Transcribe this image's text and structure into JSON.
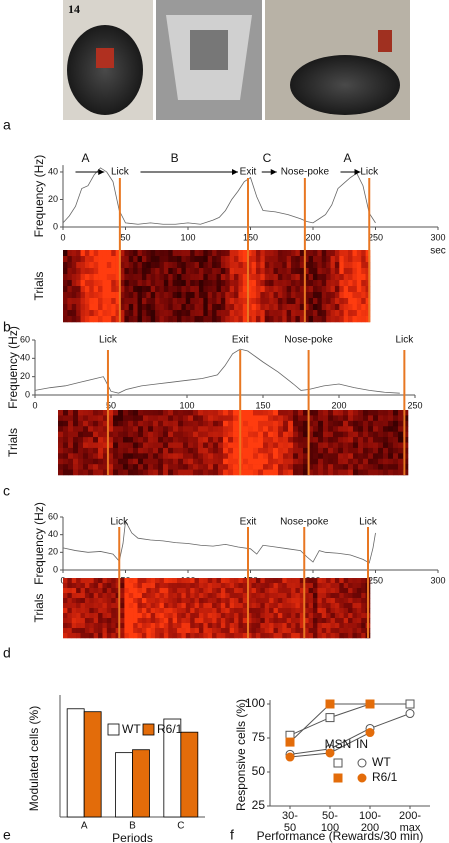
{
  "figure": {
    "photo_label": "14",
    "panel_labels": [
      "a",
      "b",
      "c",
      "d",
      "e",
      "f"
    ]
  },
  "chart_data": [
    {
      "type": "line",
      "x": [
        0,
        5,
        10,
        15,
        20,
        25,
        30,
        35,
        40,
        45,
        50,
        60,
        70,
        80,
        90,
        100,
        110,
        120,
        125,
        130,
        135,
        140,
        145,
        150,
        155,
        160,
        170,
        180,
        190,
        195,
        200,
        205,
        210,
        215,
        220,
        225,
        230,
        235,
        240,
        245,
        250
      ],
      "values": [
        3,
        8,
        15,
        28,
        30,
        38,
        43,
        40,
        33,
        12,
        3,
        2,
        3,
        2,
        2,
        3,
        2,
        5,
        7,
        12,
        20,
        26,
        33,
        36,
        22,
        12,
        11,
        9,
        6,
        4,
        3,
        6,
        9,
        16,
        28,
        32,
        36,
        39,
        30,
        10,
        3
      ],
      "color": "#666666",
      "xlim": [
        0,
        300
      ],
      "xticks": [
        0,
        50,
        100,
        150,
        200,
        250,
        300
      ],
      "ylim": [
        0,
        45
      ],
      "yticks": [
        0,
        20,
        40
      ],
      "y_label": "Frequency (Hz)",
      "x_label": "sec",
      "heatmap_label": "Trials",
      "event_color": "#e87722",
      "events": [
        {
          "x": 45.5,
          "label": "Lick"
        },
        {
          "x": 148,
          "label": "Exit"
        },
        {
          "x": 193.5,
          "label": "Nose-poke"
        },
        {
          "x": 245,
          "label": "Lick"
        }
      ],
      "periods": [
        {
          "label": "A",
          "from": 10,
          "to": 33
        },
        {
          "label": "B",
          "from": 62,
          "to": 140
        },
        {
          "label": "C",
          "from": 159,
          "to": 171
        },
        {
          "label": "A",
          "from": 222,
          "to": 238
        }
      ]
    },
    {
      "type": "line",
      "x": [
        0,
        10,
        20,
        30,
        40,
        45,
        50,
        55,
        60,
        70,
        80,
        90,
        100,
        110,
        120,
        125,
        130,
        135,
        140,
        145,
        150,
        160,
        170,
        175,
        180,
        190,
        200,
        210,
        220,
        230,
        240
      ],
      "values": [
        5,
        8,
        10,
        14,
        18,
        20,
        4,
        2,
        6,
        10,
        12,
        14,
        16,
        18,
        22,
        32,
        45,
        50,
        48,
        42,
        36,
        25,
        12,
        5,
        6,
        10,
        12,
        8,
        5,
        3,
        2
      ],
      "color": "#666666",
      "xlim": [
        0,
        250
      ],
      "xticks": [
        0,
        50,
        100,
        150,
        200,
        250
      ],
      "ylim": [
        0,
        60
      ],
      "yticks": [
        0,
        20,
        40,
        60
      ],
      "y_label": "Frequency (Hz)",
      "heatmap_label": "Trials",
      "event_color": "#e87722",
      "events": [
        {
          "x": 48,
          "label": "Lick"
        },
        {
          "x": 135,
          "label": "Exit"
        },
        {
          "x": 180,
          "label": "Nose-poke"
        },
        {
          "x": 243,
          "label": "Lick"
        }
      ]
    },
    {
      "type": "line",
      "x": [
        0,
        10,
        20,
        30,
        40,
        45,
        48,
        50,
        52,
        55,
        60,
        70,
        80,
        90,
        100,
        110,
        120,
        130,
        140,
        150,
        155,
        160,
        170,
        180,
        190,
        195,
        200,
        205,
        210,
        220,
        230,
        240,
        245,
        248,
        250
      ],
      "values": [
        25,
        22,
        20,
        21,
        18,
        10,
        30,
        55,
        50,
        42,
        36,
        34,
        33,
        31,
        30,
        28,
        27,
        29,
        26,
        24,
        18,
        28,
        26,
        24,
        22,
        15,
        9,
        22,
        20,
        19,
        17,
        12,
        8,
        25,
        42
      ],
      "color": "#666666",
      "xlim": [
        0,
        300
      ],
      "xticks": [
        0,
        50,
        100,
        150,
        200,
        250,
        300
      ],
      "ylim": [
        0,
        60
      ],
      "yticks": [
        0,
        20,
        40,
        60
      ],
      "y_label": "Frequency (Hz)",
      "heatmap_label": "Trials",
      "event_color": "#e87722",
      "events": [
        {
          "x": 45,
          "label": "Lick"
        },
        {
          "x": 148,
          "label": "Exit"
        },
        {
          "x": 193,
          "label": "Nose-poke"
        },
        {
          "x": 244,
          "label": "Lick"
        }
      ]
    },
    {
      "type": "bar",
      "categories": [
        "A",
        "B",
        "C"
      ],
      "series": [
        {
          "name": "WT",
          "color": "#ffffff",
          "values": [
            37,
            22,
            33.5
          ]
        },
        {
          "name": "R6/1",
          "color": "#e36c0a",
          "values": [
            36,
            23,
            29
          ]
        }
      ],
      "ylim": [
        0,
        40
      ],
      "y_label": "Modulated cells (%)",
      "x_label": "Periods"
    },
    {
      "type": "line",
      "categories": [
        "30-50",
        "50-100",
        "100-200",
        "200-max"
      ],
      "series": [
        {
          "marker": "square",
          "color": "#ffffff",
          "values": [
            77,
            90,
            100,
            100
          ]
        },
        {
          "marker": "circle",
          "color": "#ffffff",
          "values": [
            63,
            67,
            82,
            93
          ]
        },
        {
          "marker": "square",
          "color": "#e36c0a",
          "values": [
            72,
            100,
            100,
            null
          ]
        },
        {
          "marker": "circle",
          "color": "#e36c0a",
          "values": [
            61,
            64,
            79,
            null
          ]
        }
      ],
      "ylim": [
        25,
        100
      ],
      "yticks": [
        25,
        50,
        75,
        100
      ],
      "y_label": "Responsive cells (%)",
      "x_label": "Performance (Rewards/30 min)",
      "legend_columns": [
        "MSN",
        "IN"
      ],
      "legend_rows": [
        "WT",
        "R6/1"
      ]
    }
  ]
}
